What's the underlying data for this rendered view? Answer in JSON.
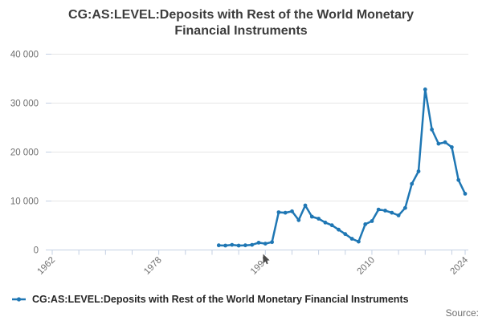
{
  "title_lines": [
    "CG:AS:LEVEL:Deposits with Rest of the World Monetary",
    "Financial Instruments"
  ],
  "legend": {
    "label": "CG:AS:LEVEL:Deposits with Rest of the World Monetary Financial Instruments"
  },
  "source_label": "Source:",
  "colors": {
    "series": "#1f77b4",
    "grid": "#e6e6e6",
    "axis": "#c4d0e3",
    "tick_text": "#6f6f6f",
    "title_text": "#3c3c3c",
    "legend_text": "#262626"
  },
  "chart_data": {
    "type": "line",
    "title": "CG:AS:LEVEL:Deposits with Rest of the World Monetary Financial Instruments",
    "xlabel": "",
    "ylabel": "",
    "xlim": [
      1961.88,
      2024.48
    ],
    "ylim": [
      0,
      40000
    ],
    "grid": "horizontal",
    "legend_position": "bottom-left",
    "marker": "circle",
    "x": [
      1987,
      1988,
      1989,
      1990,
      1991,
      1992,
      1993,
      1994,
      1995,
      1996,
      1997,
      1998,
      1999,
      2000,
      2001,
      2002,
      2003,
      2004,
      2005,
      2006,
      2007,
      2008,
      2009,
      2010,
      2011,
      2012,
      2013,
      2014,
      2015,
      2016,
      2017,
      2018,
      2019,
      2020,
      2021,
      2022,
      2023,
      2024
    ],
    "values": [
      950,
      900,
      1050,
      900,
      950,
      1050,
      1500,
      1300,
      1600,
      7700,
      7600,
      7900,
      6100,
      9100,
      6800,
      6400,
      5600,
      5050,
      4150,
      3250,
      2300,
      1700,
      5270,
      5900,
      8270,
      8050,
      7610,
      7070,
      8590,
      13500,
      16070,
      32800,
      24600,
      21700,
      22000,
      21000,
      14300,
      11500
    ],
    "y_ticks": [
      {
        "value": 0,
        "label": "0"
      },
      {
        "value": 10000,
        "label": "10 000"
      },
      {
        "value": 20000,
        "label": "20 000"
      },
      {
        "value": 30000,
        "label": "30 000"
      },
      {
        "value": 40000,
        "label": "40 000"
      }
    ],
    "x_ticks": [
      {
        "year": 1962,
        "label": "1962"
      },
      {
        "year": 1966,
        "label": ""
      },
      {
        "year": 1970,
        "label": ""
      },
      {
        "year": 1974,
        "label": ""
      },
      {
        "year": 1978,
        "label": "1978"
      },
      {
        "year": 1982,
        "label": ""
      },
      {
        "year": 1986,
        "label": ""
      },
      {
        "year": 1990,
        "label": ""
      },
      {
        "year": 1994,
        "label": "1994"
      },
      {
        "year": 1998,
        "label": ""
      },
      {
        "year": 2002,
        "label": ""
      },
      {
        "year": 2006,
        "label": ""
      },
      {
        "year": 2010,
        "label": "2010"
      },
      {
        "year": 2014,
        "label": ""
      },
      {
        "year": 2018,
        "label": ""
      },
      {
        "year": 2022,
        "label": ""
      },
      {
        "year": 2024,
        "label": "2024"
      }
    ]
  }
}
